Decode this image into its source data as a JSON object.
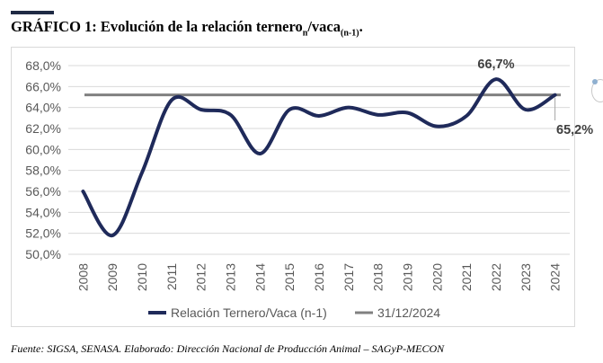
{
  "title": {
    "main": "GRÁFICO 1: Evolución de la relación ternero",
    "sub1": "n",
    "mid": "/vaca",
    "sub2": "(n-1)",
    "end": "."
  },
  "source": "Fuente: SIGSA, SENASA. Elaborado: Dirección Nacional de Producción Animal – SAGyP-MECON",
  "colors": {
    "series": "#1f2a5a",
    "reference": "#808080",
    "grid": "#d9d9d9"
  },
  "chart_data": {
    "type": "line",
    "title": "",
    "xlabel": "",
    "ylabel": "",
    "ylim": [
      50,
      68
    ],
    "yticks": [
      "50,0%",
      "52,0%",
      "54,0%",
      "56,0%",
      "58,0%",
      "60,0%",
      "62,0%",
      "64,0%",
      "66,0%",
      "68,0%"
    ],
    "categories": [
      "2008",
      "2009",
      "2010",
      "2011",
      "2012",
      "2013",
      "2014",
      "2015",
      "2016",
      "2017",
      "2018",
      "2019",
      "2020",
      "2021",
      "2022",
      "2023",
      "2024"
    ],
    "series": [
      {
        "name": "Relación Ternero/Vaca (n-1)",
        "values": [
          56.0,
          51.8,
          57.8,
          64.7,
          63.8,
          63.3,
          59.6,
          63.8,
          63.2,
          64.0,
          63.3,
          63.5,
          62.2,
          63.2,
          66.7,
          63.8,
          65.2
        ]
      },
      {
        "name": "31/12/2024",
        "values": [
          65.2,
          65.2,
          65.2,
          65.2,
          65.2,
          65.2,
          65.2,
          65.2,
          65.2,
          65.2,
          65.2,
          65.2,
          65.2,
          65.2,
          65.2,
          65.2,
          65.2
        ]
      }
    ],
    "annotations": [
      "66,7%",
      "65,2%"
    ],
    "grid": true,
    "legend_position": "bottom"
  }
}
